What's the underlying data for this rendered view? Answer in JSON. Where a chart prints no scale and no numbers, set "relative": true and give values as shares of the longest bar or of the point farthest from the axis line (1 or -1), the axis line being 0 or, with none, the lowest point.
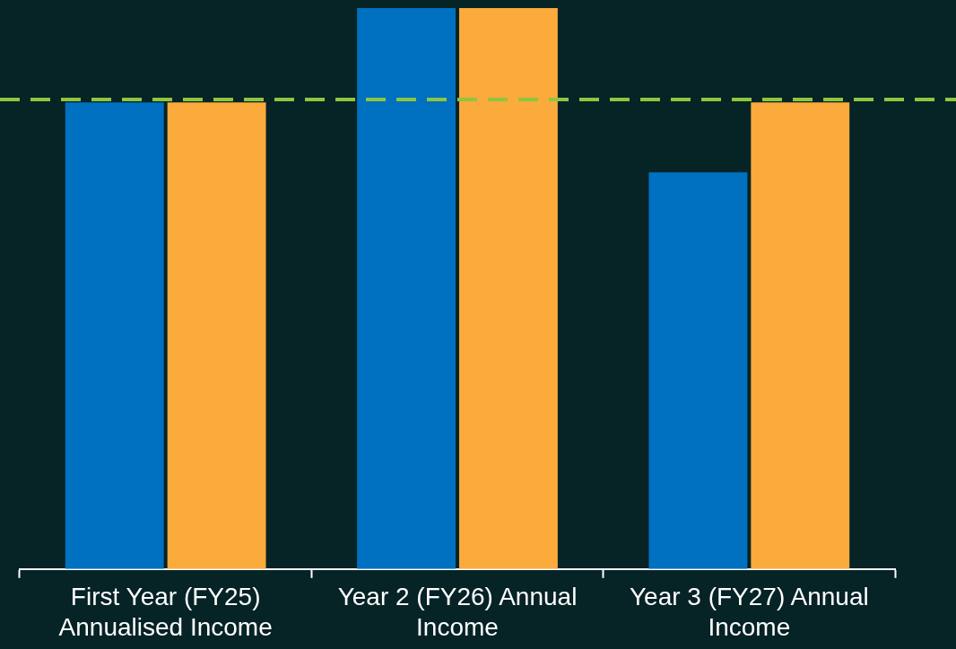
{
  "chart_data": {
    "type": "bar",
    "relative": true,
    "categories": [
      "First Year (FY25) Annualised Income",
      "Year 2 (FY26) Annual Income",
      "Year 3 (FY27) Annual Income"
    ],
    "series": [
      {
        "color": "#0070c0",
        "values": [
          0.832,
          1,
          0.707
        ]
      },
      {
        "color": "#fbaa3c",
        "values": [
          0.832,
          1,
          0.832
        ]
      }
    ],
    "ref_lines": [
      {
        "axis": "y",
        "value": 0.837,
        "color": "#8dc63f",
        "line_style": "dashed"
      }
    ],
    "legend": false,
    "grid": false
  }
}
